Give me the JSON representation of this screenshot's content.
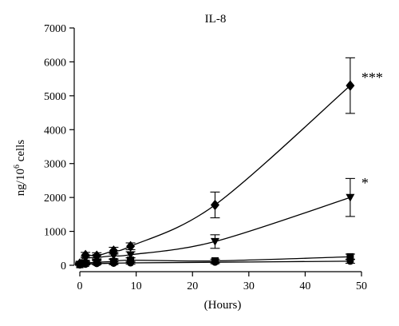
{
  "chart_data": {
    "type": "line",
    "title": "IL-8",
    "xlabel": "(Hours)",
    "ylabel": "ng/10⁶ cells",
    "ylabel_parts": {
      "base": "ng/10",
      "sup": "6",
      "tail": " cells"
    },
    "xlim": [
      -1,
      50
    ],
    "ylim": [
      0,
      7000
    ],
    "xticks": [
      0,
      10,
      20,
      30,
      40,
      50
    ],
    "yticks": [
      0,
      1000,
      2000,
      3000,
      4000,
      5000,
      6000,
      7000
    ],
    "grid": false,
    "legend": "none",
    "series": [
      {
        "marker": "diamond",
        "x": [
          0,
          1,
          3,
          6,
          9,
          24,
          48
        ],
        "y": [
          50,
          300,
          280,
          430,
          560,
          1780,
          5300
        ],
        "err": [
          40,
          80,
          90,
          100,
          100,
          380,
          820
        ],
        "annotation": "***"
      },
      {
        "marker": "triangle-down",
        "x": [
          0,
          1,
          3,
          6,
          9,
          24,
          48
        ],
        "y": [
          30,
          200,
          230,
          280,
          310,
          700,
          2000
        ],
        "err": [
          30,
          60,
          70,
          90,
          90,
          200,
          560
        ],
        "annotation": "*"
      },
      {
        "marker": "square",
        "x": [
          0,
          1,
          3,
          6,
          9,
          24,
          48
        ],
        "y": [
          20,
          60,
          90,
          110,
          150,
          130,
          250
        ],
        "err": [
          15,
          40,
          50,
          60,
          70,
          50,
          80
        ]
      },
      {
        "marker": "circle",
        "x": [
          0,
          1,
          3,
          6,
          9,
          24,
          48
        ],
        "y": [
          10,
          30,
          50,
          60,
          70,
          90,
          120
        ],
        "err": [
          10,
          20,
          30,
          40,
          40,
          40,
          60
        ]
      }
    ]
  }
}
